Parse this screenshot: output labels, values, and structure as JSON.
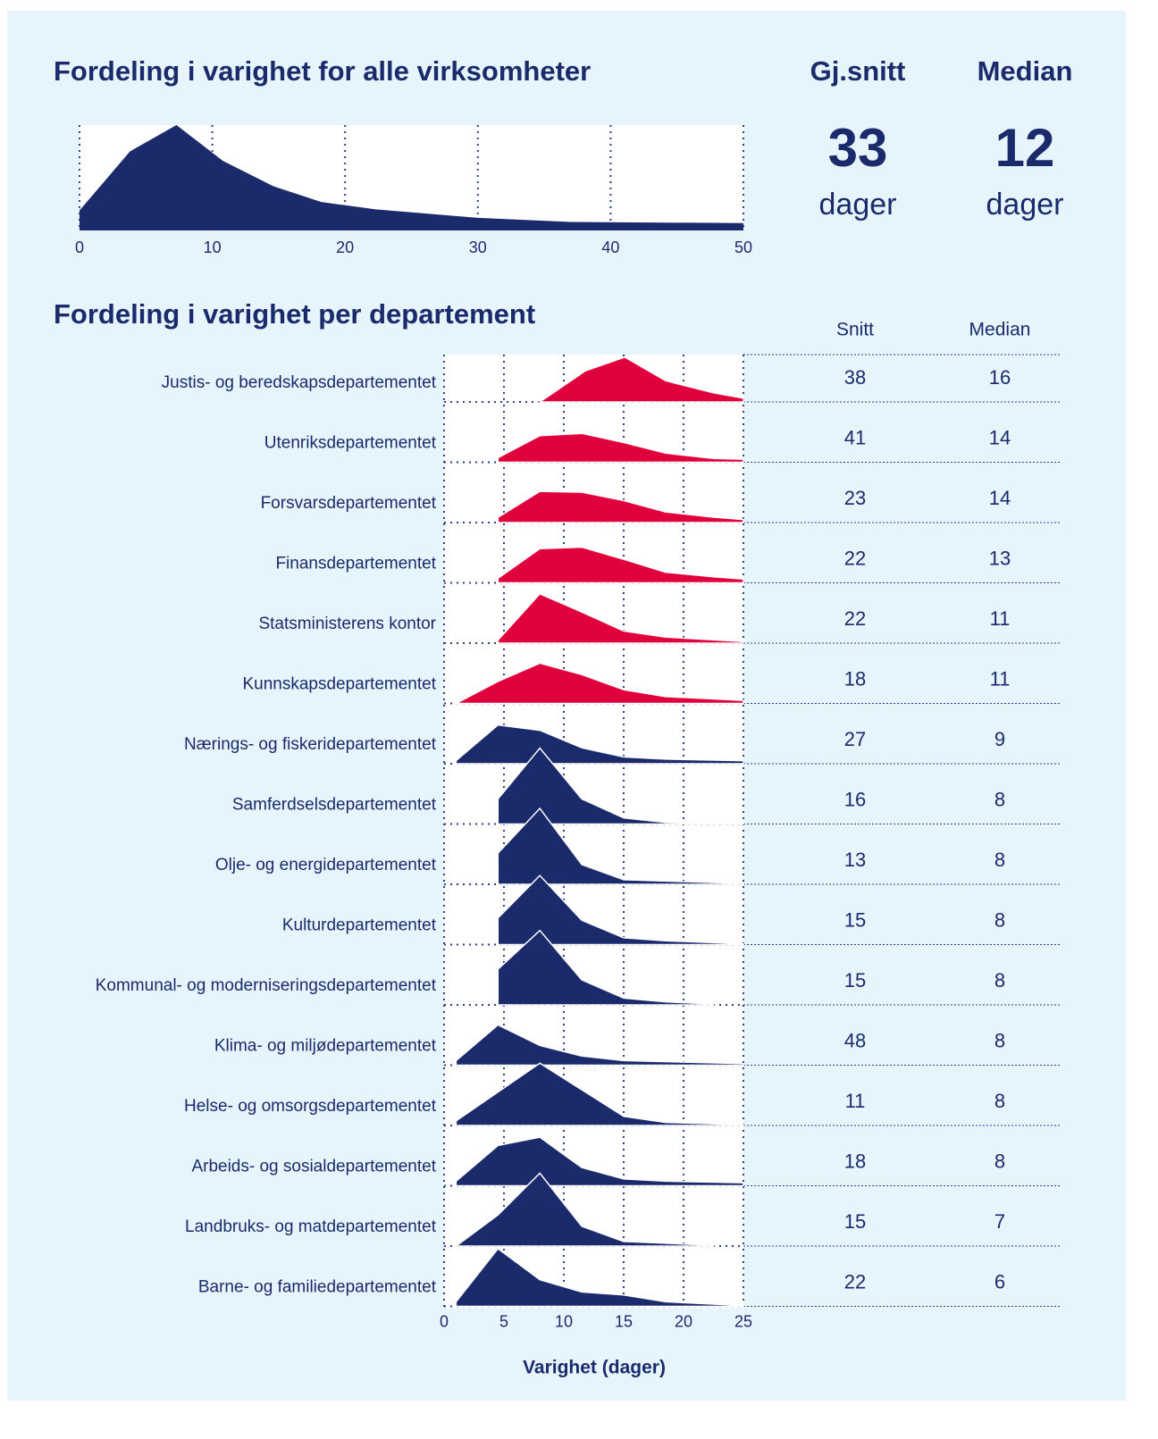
{
  "chart_data": [
    {
      "type": "area",
      "title": "Fordeling i varighet for alle   virksomheter",
      "x": [
        0,
        3.8,
        7.3,
        10.8,
        14.6,
        18.2,
        22.3,
        30,
        37,
        50
      ],
      "values": [
        19,
        75,
        100,
        66,
        42,
        27,
        20,
        12,
        8,
        7
      ],
      "color": "#1b2a6b",
      "xlim": [
        0,
        50
      ],
      "xticks": [
        0,
        10,
        20,
        30,
        40,
        50
      ],
      "ylim": [
        0,
        100
      ],
      "grid": true,
      "stats": [
        {
          "label": "Gj.snitt",
          "value": 33,
          "unit": "dager"
        },
        {
          "label": "Median",
          "value": 12,
          "unit": "dager"
        }
      ]
    },
    {
      "type": "ridgeline",
      "title": "Fordeling i  varighet per departement",
      "xlabel": "Varighet (dager)",
      "xlim": [
        0,
        25
      ],
      "xticks": [
        0,
        5,
        10,
        15,
        20,
        25
      ],
      "ylim": [
        0,
        100
      ],
      "grid": true,
      "columns": [
        "Snitt",
        "Median"
      ],
      "series": [
        {
          "name": "Justis- og beredskapsdepartementet",
          "color": "#e0003c",
          "x": [
            8,
            11.8,
            15.1,
            18.5,
            22.5,
            25
          ],
          "values": [
            0,
            41,
            59,
            28,
            12,
            5
          ],
          "snitt": 38,
          "median": 16
        },
        {
          "name": "Utenriksdepartementet",
          "color": "#e0003c",
          "x": [
            4.5,
            8,
            11.5,
            15,
            18.5,
            22.5,
            25
          ],
          "values": [
            6,
            35,
            38,
            26,
            12,
            5,
            4
          ],
          "snitt": 41,
          "median": 14
        },
        {
          "name": "Forsvarsdepartementet",
          "color": "#e0003c",
          "x": [
            4.5,
            8,
            11.5,
            15,
            18.5,
            22.5,
            25
          ],
          "values": [
            7,
            41,
            40,
            29,
            14,
            7,
            4
          ],
          "snitt": 23,
          "median": 14
        },
        {
          "name": "Finansdepartementet",
          "color": "#e0003c",
          "x": [
            4.5,
            8,
            11.5,
            15,
            18.5,
            22.5,
            25
          ],
          "values": [
            6,
            45,
            47,
            31,
            14,
            8,
            5
          ],
          "snitt": 22,
          "median": 13
        },
        {
          "name": "Statsministerens kontor",
          "color": "#e0003c",
          "x": [
            4.5,
            8,
            11.5,
            15,
            18.5,
            25
          ],
          "values": [
            4,
            65,
            41,
            16,
            8,
            2
          ],
          "snitt": 22,
          "median": 11
        },
        {
          "name": "Kunnskapsdepartementet",
          "color": "#e0003c",
          "x": [
            1,
            4.5,
            8,
            11.5,
            15,
            18.5,
            25
          ],
          "values": [
            0,
            29,
            53,
            38,
            18,
            9,
            4
          ],
          "snitt": 18,
          "median": 11
        },
        {
          "name": "Nærings- og fiskeridepartementet",
          "color": "#1b2a6b",
          "x": [
            1,
            4.5,
            8,
            11.5,
            15,
            18.5,
            25
          ],
          "values": [
            4,
            51,
            44,
            21,
            9,
            6,
            4
          ],
          "snitt": 27,
          "median": 9
        },
        {
          "name": "Samferdselsdepartementet",
          "color": "#1b2a6b",
          "x": [
            4.5,
            8,
            11.5,
            15,
            18.5,
            25
          ],
          "values": [
            33,
            100,
            33,
            8,
            2,
            1
          ],
          "snitt": 16,
          "median": 8
        },
        {
          "name": "Olje- og energidepartementet",
          "color": "#1b2a6b",
          "x": [
            4.5,
            8,
            11.5,
            15,
            25
          ],
          "values": [
            41,
            100,
            26,
            6,
            1
          ],
          "snitt": 13,
          "median": 8
        },
        {
          "name": "Kulturdepartementet",
          "color": "#1b2a6b",
          "x": [
            4.5,
            8,
            11.5,
            15,
            18.5,
            25
          ],
          "values": [
            35,
            91,
            32,
            9,
            5,
            1
          ],
          "snitt": 15,
          "median": 8
        },
        {
          "name": "Kommunal- og moderniseringsdepartementet",
          "color": "#1b2a6b",
          "x": [
            4.5,
            8,
            11.5,
            15,
            18.5,
            22.5
          ],
          "values": [
            47,
            98,
            33,
            9,
            4,
            1
          ],
          "snitt": 15,
          "median": 8
        },
        {
          "name": "Klima- og miljødepartementet",
          "color": "#1b2a6b",
          "x": [
            1,
            4.5,
            8,
            11.5,
            15,
            25
          ],
          "values": [
            6,
            53,
            26,
            12,
            6,
            2
          ],
          "snitt": 48,
          "median": 8
        },
        {
          "name": "Helse- og omsorgsdepartementet",
          "color": "#1b2a6b",
          "x": [
            1,
            8,
            11.5,
            15,
            18.5,
            25
          ],
          "values": [
            6,
            82,
            47,
            12,
            4,
            1
          ],
          "snitt": 11,
          "median": 8
        },
        {
          "name": "Arbeids- og sosialdepartementet",
          "color": "#1b2a6b",
          "x": [
            1,
            4.5,
            8,
            11.5,
            15,
            18.5,
            25
          ],
          "values": [
            6,
            53,
            64,
            24,
            9,
            6,
            4
          ],
          "snitt": 18,
          "median": 8
        },
        {
          "name": "Landbruks- og matdepartementet",
          "color": "#1b2a6b",
          "x": [
            1,
            4.5,
            8,
            11.5,
            15,
            22.5
          ],
          "values": [
            0,
            41,
            96,
            26,
            6,
            1
          ],
          "snitt": 15,
          "median": 7
        },
        {
          "name": "Barne- og familiedepartementet",
          "color": "#1b2a6b",
          "x": [
            1,
            4.5,
            8,
            11.5,
            15,
            18.5,
            25
          ],
          "values": [
            6,
            76,
            35,
            19,
            15,
            6,
            1
          ],
          "snitt": 22,
          "median": 6
        }
      ]
    }
  ]
}
